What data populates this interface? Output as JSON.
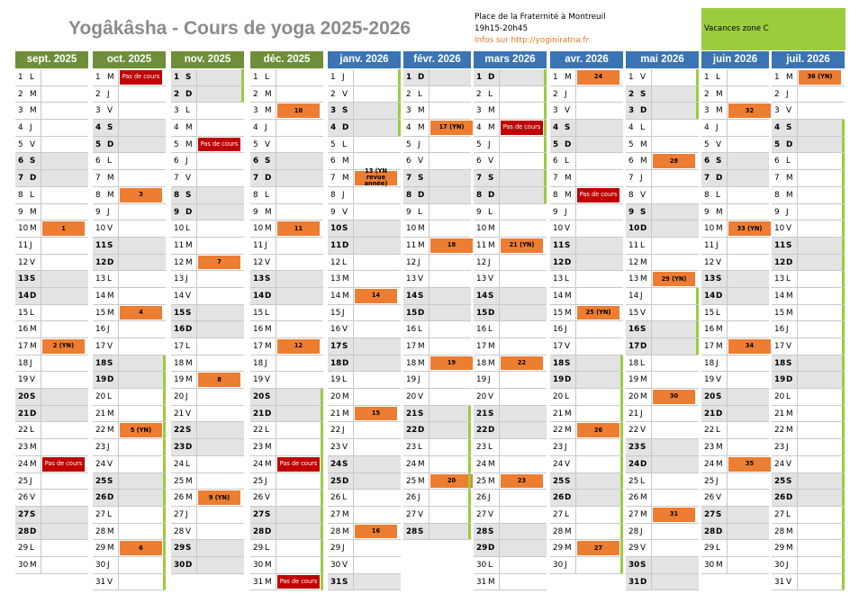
{
  "header": {
    "title": "Yogâkâsha - Cours de yoga 2025-2026",
    "place": "Place de la Fraternité à Montreuil",
    "hours": "19h15-20h45",
    "info_prefix": "Infos sur ",
    "info_link": "http://yoginiratna.fr",
    "vacation_legend": "Vacances zone C"
  },
  "colors": {
    "green_header": "#6e8e3a",
    "blue_header": "#3a74b4",
    "course": "#ed7d31",
    "no_course": "#c00000",
    "vacation": "#9bcc3d",
    "weekend": "#e3e3e3"
  },
  "months": [
    {
      "name": "sept. 2025",
      "color": "g",
      "first": 1,
      "days": 30,
      "ev": {
        "10": "1",
        "17": "2 (YN)",
        "24": "Pas de cours"
      },
      "vac": []
    },
    {
      "name": "oct. 2025",
      "color": "g",
      "first": 3,
      "days": 31,
      "ev": {
        "1": "Pas de cours",
        "8": "3",
        "15": "4",
        "22": "5 (YN)",
        "29": "6"
      },
      "vac": [
        [
          18,
          31
        ]
      ]
    },
    {
      "name": "nov. 2025",
      "color": "g",
      "first": 6,
      "days": 30,
      "ev": {
        "5": "Pas de cours",
        "12": "7",
        "19": "8",
        "26": "9 (YN)"
      },
      "vac": [
        [
          1,
          2
        ]
      ]
    },
    {
      "name": "déc. 2025",
      "color": "g",
      "first": 1,
      "days": 31,
      "ev": {
        "3": "10",
        "10": "11",
        "17": "12",
        "24": "Pas de cours",
        "31": "Pas de cours"
      },
      "vac": [
        [
          20,
          31
        ]
      ]
    },
    {
      "name": "janv. 2026",
      "color": "b",
      "first": 4,
      "days": 31,
      "ev": {
        "7": "13 (YN revue année)",
        "14": "14",
        "21": "15",
        "28": "16"
      },
      "vac": [
        [
          1,
          4
        ]
      ]
    },
    {
      "name": "févr. 2026",
      "color": "b",
      "first": 0,
      "days": 28,
      "ev": {
        "4": "17 (YN)",
        "11": "18",
        "18": "19",
        "25": "20"
      },
      "vac": [
        [
          21,
          28
        ]
      ]
    },
    {
      "name": "mars 2026",
      "color": "b",
      "first": 0,
      "days": 31,
      "ev": {
        "4": "Pas de cours",
        "11": "21 (YN)",
        "18": "22",
        "25": "23"
      },
      "vac": [
        [
          1,
          8
        ]
      ]
    },
    {
      "name": "avr. 2026",
      "color": "b",
      "first": 3,
      "days": 30,
      "ev": {
        "1": "24",
        "8": "Pas de cours",
        "15": "25 (YN)",
        "22": "26",
        "29": "27"
      },
      "vac": [
        [
          18,
          30
        ]
      ]
    },
    {
      "name": "mai 2026",
      "color": "b",
      "first": 5,
      "days": 31,
      "ev": {
        "6": "28",
        "13": "29 (YN)",
        "20": "30",
        "27": "31"
      },
      "vac": [
        [
          1,
          3
        ],
        [
          14,
          17
        ]
      ]
    },
    {
      "name": "juin 2026",
      "color": "b",
      "first": 1,
      "days": 30,
      "ev": {
        "3": "32",
        "10": "33 (YN)",
        "17": "34",
        "24": "35"
      },
      "vac": []
    },
    {
      "name": "juil. 2026",
      "color": "b",
      "first": 3,
      "days": 31,
      "ev": {
        "1": "36 (YN)"
      },
      "vac": [
        [
          4,
          31
        ]
      ]
    }
  ],
  "weekday_letters": [
    "D",
    "L",
    "M",
    "M",
    "J",
    "V",
    "S"
  ]
}
